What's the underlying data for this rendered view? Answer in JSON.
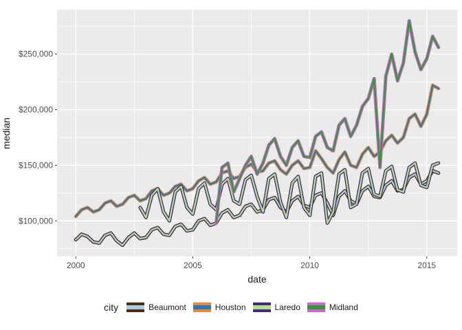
{
  "figure": {
    "background": "#FFFFFF",
    "panel_background": "#EBEBEB",
    "grid_color": "#FFFFFF",
    "tick_mark_color": "#333333",
    "tick_label_color": "#4D4D4D",
    "axis_title_color": "#1A1A1A",
    "legend_key_background": "#F2F2F2"
  },
  "chart_data": {
    "type": "line",
    "title": "",
    "xlabel": "date",
    "ylabel": "median",
    "legend_title": "city",
    "legend_position": "bottom",
    "grid": "on",
    "xlim": [
      1999.2,
      2016.3
    ],
    "ylim": [
      68000,
      290000
    ],
    "x_ticks": [
      {
        "value": 2000,
        "label": "2000"
      },
      {
        "value": 2005,
        "label": "2005"
      },
      {
        "value": 2010,
        "label": "2010"
      },
      {
        "value": 2015,
        "label": "2015"
      }
    ],
    "y_ticks": [
      {
        "value": 100000,
        "label": "$100,000"
      },
      {
        "value": 150000,
        "label": "$150,000"
      },
      {
        "value": 200000,
        "label": "$200,000"
      },
      {
        "value": 250000,
        "label": "$250,000"
      }
    ],
    "x_minor": [
      2002.5,
      2007.5,
      2012.5
    ],
    "y_minor": [
      75000,
      125000,
      175000,
      225000,
      275000
    ],
    "y_unit_multiplier": 1000,
    "series": [
      {
        "name": "Beaumont",
        "inner_color": "#A8CEE2",
        "outer_color": "#4E2B0F",
        "x_start": 2000.0,
        "x_step": 0.25,
        "values_k": [
          83,
          88,
          86,
          81,
          80,
          87,
          89,
          82,
          78,
          85,
          89,
          84,
          85,
          92,
          94,
          88,
          87,
          95,
          97,
          91,
          92,
          100,
          102,
          96,
          98,
          107,
          110,
          103,
          105,
          113,
          115,
          108,
          110,
          119,
          121,
          112,
          108,
          118,
          122,
          114,
          112,
          123,
          125,
          116,
          105,
          122,
          127,
          118,
          115,
          127,
          131,
          122,
          121,
          132,
          136,
          127,
          128,
          139,
          142,
          133,
          136,
          145,
          143
        ]
      },
      {
        "name": "Houston",
        "inner_color": "#2E77B5",
        "outer_color": "#E5893B",
        "x_start": 2000.0,
        "x_step": 0.25,
        "values_k": [
          104,
          110,
          112,
          108,
          110,
          116,
          118,
          113,
          115,
          121,
          123,
          118,
          120,
          127,
          129,
          123,
          125,
          131,
          133,
          127,
          129,
          136,
          139,
          133,
          135,
          143,
          145,
          138,
          140,
          148,
          151,
          144,
          145,
          152,
          154,
          146,
          142,
          150,
          154,
          147,
          148,
          163,
          156,
          148,
          143,
          155,
          162,
          150,
          148,
          160,
          166,
          158,
          162,
          172,
          177,
          170,
          175,
          192,
          196,
          185,
          196,
          222,
          219
        ]
      },
      {
        "name": "Laredo",
        "inner_color": "#B2DF8A",
        "outer_color": "#46277B",
        "x_start": 2002.75,
        "x_step": 0.25,
        "values_k": [
          112,
          103,
          123,
          129,
          108,
          100,
          126,
          131,
          112,
          106,
          129,
          134,
          115,
          110,
          133,
          138,
          118,
          115,
          137,
          141,
          122,
          108,
          138,
          142,
          117,
          103,
          134,
          140,
          112,
          105,
          140,
          143,
          98,
          108,
          142,
          146,
          112,
          115,
          143,
          147,
          124,
          122,
          145,
          149,
          128,
          126,
          148,
          152,
          132,
          130,
          150,
          152
        ]
      },
      {
        "name": "Midland",
        "inner_color": "#2E9B33",
        "outer_color": "#D262D2",
        "x_start": 2006.0,
        "x_step": 0.25,
        "values_k": [
          98,
          148,
          152,
          126,
          138,
          150,
          158,
          142,
          152,
          168,
          174,
          158,
          150,
          166,
          172,
          158,
          157,
          176,
          180,
          166,
          163,
          186,
          192,
          176,
          186,
          203,
          210,
          228,
          148,
          230,
          250,
          226,
          242,
          280,
          252,
          236,
          246,
          266,
          256
        ]
      }
    ]
  }
}
